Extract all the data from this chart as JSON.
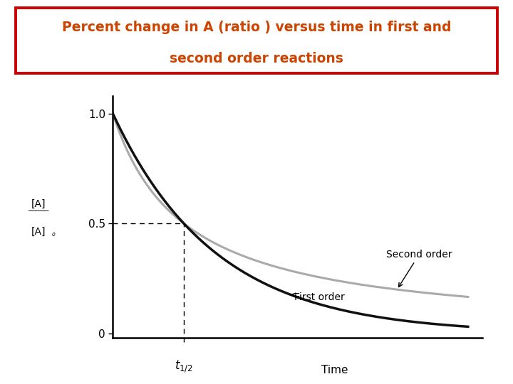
{
  "title_line1": "Percent change in A (ratio ) versus time in first and",
  "title_line2": "second order reactions",
  "title_color": "#cc4400",
  "title_box_edge_color": "#cc0000",
  "title_fontsize": 13.5,
  "first_order_label": "First order",
  "second_order_label": "Second order",
  "first_order_color": "#111111",
  "second_order_color": "#aaaaaa",
  "background_color": "#ffffff",
  "t_max": 5.0,
  "t_half": 1.0,
  "ylim": [
    -0.02,
    1.08
  ],
  "xlim": [
    0,
    5.2
  ],
  "ytick_vals": [
    0,
    0.5,
    1.0
  ],
  "ytick_labels": [
    "0",
    "0.5",
    "1.0"
  ]
}
